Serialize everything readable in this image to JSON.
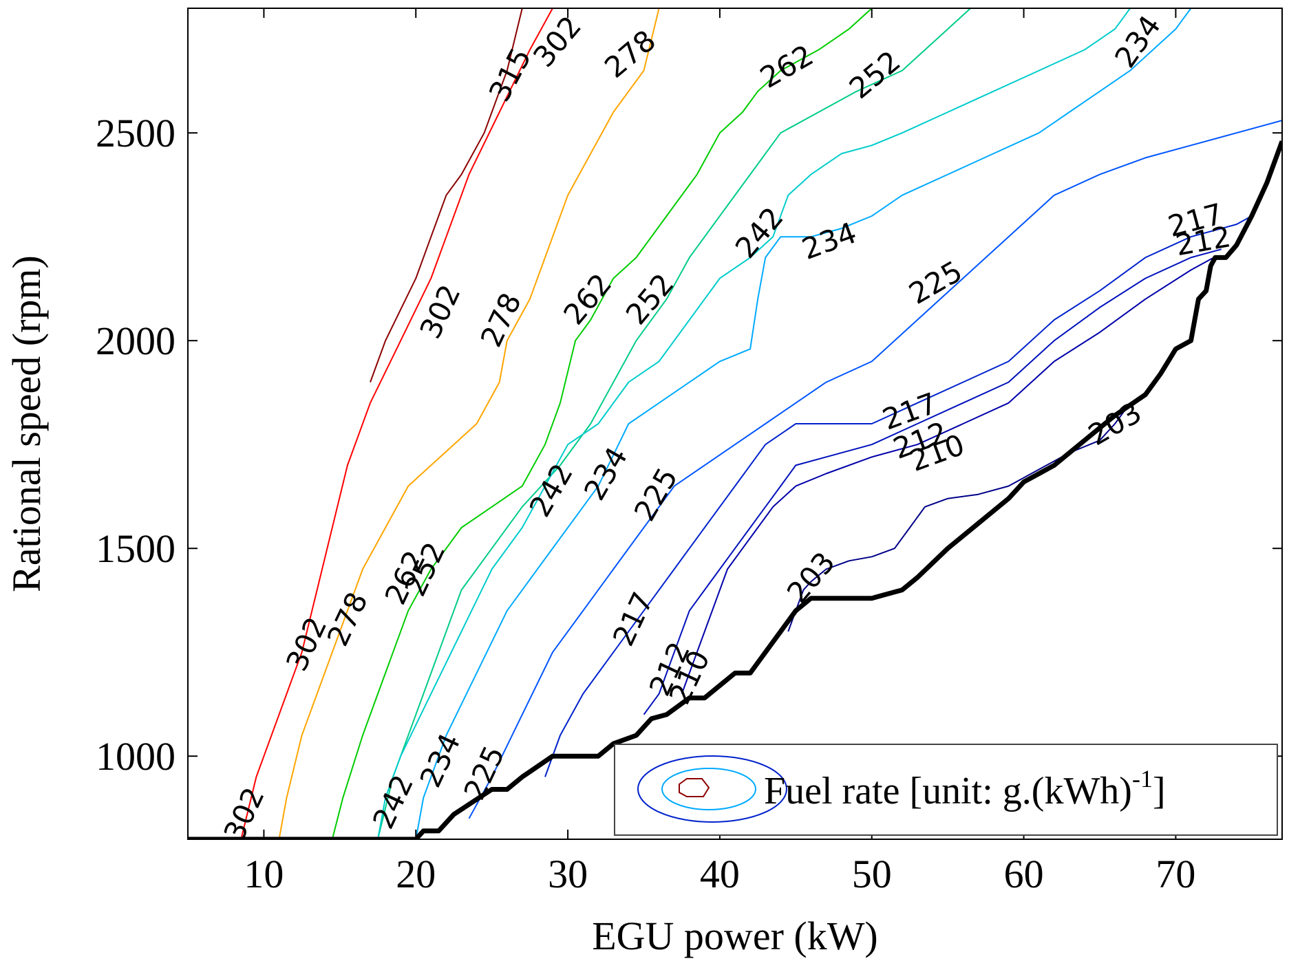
{
  "chart_data": {
    "type": "contour",
    "xlabel": "EGU power (kW)",
    "ylabel": "Rational speed (rpm)",
    "xlim": [
      5,
      77
    ],
    "ylim": [
      800,
      2800
    ],
    "xticks": [
      10,
      20,
      30,
      40,
      50,
      60,
      70
    ],
    "yticks": [
      1000,
      1500,
      2000,
      2500
    ],
    "legend": {
      "position": "bottom-right",
      "text": "Fuel rate [unit: g.(kWh)",
      "superscript": "-1",
      "close": "]"
    },
    "boundary": {
      "name": "",
      "color": "#000000",
      "x": [
        5,
        20,
        20.5,
        21.5,
        22.5,
        25,
        26,
        27,
        29,
        30,
        32,
        33,
        34.5,
        35.5,
        36.5,
        38,
        39,
        40,
        41,
        42,
        43,
        44,
        45,
        46,
        47,
        50,
        51,
        52,
        53,
        55,
        57,
        59,
        60,
        61,
        62,
        64,
        66,
        68,
        69,
        69.5,
        70,
        71,
        71.5,
        72,
        72.3,
        72.6,
        73,
        73.3,
        74,
        75,
        76,
        77
      ],
      "y": [
        800,
        800,
        820,
        820,
        860,
        920,
        920,
        950,
        1000,
        1000,
        1000,
        1030,
        1050,
        1090,
        1100,
        1140,
        1140,
        1170,
        1200,
        1200,
        1250,
        1300,
        1350,
        1380,
        1380,
        1380,
        1390,
        1400,
        1430,
        1500,
        1560,
        1620,
        1660,
        1680,
        1700,
        1760,
        1820,
        1870,
        1920,
        1950,
        1980,
        2000,
        2100,
        2120,
        2180,
        2200,
        2200,
        2200,
        2230,
        2300,
        2380,
        2480
      ]
    },
    "contours": [
      {
        "level": "315",
        "color": "#8b0000",
        "x": [
          17,
          18,
          20,
          21,
          22,
          23,
          24.5,
          26,
          27
        ],
        "y": [
          1900,
          2000,
          2150,
          2250,
          2350,
          2400,
          2500,
          2650,
          2800
        ],
        "labels": [
          {
            "text": "315",
            "x": 26.2,
            "y": 2640,
            "angle": -62
          }
        ]
      },
      {
        "level": "302",
        "color": "#ff0000",
        "x": [
          8.5,
          9.5,
          11,
          12.5,
          13.5,
          14.5,
          15.5,
          17,
          19,
          21,
          22,
          23.5,
          25.5,
          27.5,
          29
        ],
        "y": [
          800,
          950,
          1100,
          1250,
          1400,
          1550,
          1700,
          1850,
          2000,
          2150,
          2250,
          2400,
          2550,
          2700,
          2800
        ],
        "labels": [
          {
            "text": "302",
            "x": 8.7,
            "y": 860,
            "angle": -65
          },
          {
            "text": "302",
            "x": 12.8,
            "y": 1270,
            "angle": -65
          },
          {
            "text": "302",
            "x": 21.6,
            "y": 2070,
            "angle": -65
          },
          {
            "text": "302",
            "x": 29.3,
            "y": 2720,
            "angle": -50
          }
        ]
      },
      {
        "level": "278",
        "color": "#ffa500",
        "x": [
          11,
          11.5,
          12.5,
          13.5,
          14.5,
          15.5,
          16.5,
          18,
          19.5,
          21,
          22.5,
          24,
          25.5,
          26,
          27.5,
          28.5,
          30,
          31.5,
          33,
          35,
          36
        ],
        "y": [
          800,
          900,
          1050,
          1150,
          1250,
          1350,
          1450,
          1550,
          1650,
          1700,
          1750,
          1800,
          1900,
          2000,
          2100,
          2200,
          2350,
          2450,
          2550,
          2650,
          2800
        ],
        "labels": [
          {
            "text": "278",
            "x": 15.5,
            "y": 1330,
            "angle": -65
          },
          {
            "text": "278",
            "x": 25.6,
            "y": 2050,
            "angle": -65
          },
          {
            "text": "278",
            "x": 34.1,
            "y": 2690,
            "angle": -40
          }
        ]
      },
      {
        "level": "262",
        "color": "#00cc00",
        "x": [
          14.5,
          15.2,
          16.5,
          17.5,
          18.5,
          19.5,
          21,
          23,
          25,
          27,
          28.5,
          29.5,
          30.5,
          31.5,
          33,
          34.5,
          36.5,
          38.5,
          40,
          41.5,
          42.5,
          44,
          46.5,
          48.5,
          50,
          51
        ],
        "y": [
          800,
          900,
          1050,
          1150,
          1250,
          1350,
          1450,
          1550,
          1600,
          1650,
          1750,
          1850,
          2000,
          2050,
          2150,
          2200,
          2300,
          2400,
          2500,
          2550,
          2600,
          2650,
          2700,
          2750,
          2800,
          2800
        ],
        "labels": [
          {
            "text": "262",
            "x": 19.3,
            "y": 1430,
            "angle": -65
          },
          {
            "text": "262",
            "x": 31.3,
            "y": 2100,
            "angle": -50
          },
          {
            "text": "262",
            "x": 44.4,
            "y": 2660,
            "angle": -30
          }
        ]
      },
      {
        "level": "252",
        "color": "#00cc88",
        "x": [
          17.5,
          18.5,
          20,
          21.5,
          23,
          25,
          27,
          29.5,
          31.5,
          33,
          34.5,
          36.5,
          38,
          40,
          42,
          44,
          46.5,
          49,
          52,
          55,
          56.5
        ],
        "y": [
          800,
          950,
          1100,
          1250,
          1400,
          1500,
          1600,
          1700,
          1800,
          1900,
          2000,
          2100,
          2200,
          2300,
          2400,
          2500,
          2550,
          2600,
          2650,
          2750,
          2800
        ],
        "labels": [
          {
            "text": "252",
            "x": 20.6,
            "y": 1450,
            "angle": -65
          },
          {
            "text": "252",
            "x": 35.4,
            "y": 2100,
            "angle": -50
          },
          {
            "text": "252",
            "x": 50.2,
            "y": 2640,
            "angle": -40
          }
        ]
      },
      {
        "level": "242",
        "color": "#00cccc",
        "x": [
          17.5,
          18,
          19,
          21,
          23,
          25,
          27,
          28.5,
          30,
          32,
          34,
          36,
          38,
          40,
          42,
          43.5,
          44.5,
          46,
          48,
          50,
          52,
          55,
          58,
          61,
          64,
          66,
          67
        ],
        "y": [
          800,
          900,
          1000,
          1150,
          1300,
          1450,
          1550,
          1650,
          1750,
          1800,
          1900,
          1950,
          2050,
          2150,
          2200,
          2250,
          2350,
          2400,
          2450,
          2470,
          2500,
          2550,
          2600,
          2650,
          2700,
          2750,
          2800
        ],
        "labels": [
          {
            "text": "242",
            "x": 18.5,
            "y": 890,
            "angle": -65
          },
          {
            "text": "242",
            "x": 28.9,
            "y": 1640,
            "angle": -60
          },
          {
            "text": "242",
            "x": 42.6,
            "y": 2260,
            "angle": -50
          }
        ]
      },
      {
        "level": "234",
        "color": "#00aaff",
        "x": [
          20,
          20.5,
          22,
          24,
          26,
          28,
          30,
          32,
          34,
          36,
          38,
          40,
          42,
          42.5,
          43,
          44,
          46,
          48,
          50,
          52,
          55,
          58,
          61,
          63,
          65,
          67,
          68.5,
          70,
          71,
          72
        ],
        "y": [
          800,
          900,
          1050,
          1200,
          1350,
          1450,
          1550,
          1650,
          1800,
          1850,
          1900,
          1950,
          1980,
          2100,
          2200,
          2250,
          2250,
          2270,
          2300,
          2350,
          2400,
          2450,
          2500,
          2550,
          2600,
          2650,
          2700,
          2750,
          2800,
          2800
        ],
        "labels": [
          {
            "text": "234",
            "x": 21.6,
            "y": 990,
            "angle": -65
          },
          {
            "text": "234",
            "x": 32.5,
            "y": 1680,
            "angle": -60
          },
          {
            "text": "234",
            "x": 47.2,
            "y": 2240,
            "angle": -20
          },
          {
            "text": "234",
            "x": 67.5,
            "y": 2720,
            "angle": -55
          }
        ]
      },
      {
        "level": "225",
        "color": "#0055ff",
        "x": [
          23.5,
          25,
          27,
          29,
          31,
          33,
          35,
          37,
          39,
          41,
          43,
          45,
          47,
          50,
          53,
          56,
          59,
          62,
          65,
          68,
          71,
          74,
          77
        ],
        "y": [
          850,
          950,
          1100,
          1250,
          1350,
          1450,
          1550,
          1650,
          1700,
          1750,
          1800,
          1850,
          1900,
          1950,
          2050,
          2150,
          2250,
          2350,
          2400,
          2440,
          2470,
          2500,
          2530
        ],
        "labels": [
          {
            "text": "225",
            "x": 24.5,
            "y": 960,
            "angle": -65
          },
          {
            "text": "225",
            "x": 35.8,
            "y": 1630,
            "angle": -60
          },
          {
            "text": "225",
            "x": 54.2,
            "y": 2140,
            "angle": -30
          }
        ]
      },
      {
        "level": "217",
        "color": "#0022cc",
        "x": [
          28.5,
          29.5,
          31,
          33,
          35,
          37,
          39,
          41,
          43,
          45,
          47,
          50,
          53,
          56,
          59,
          62,
          65,
          68,
          71,
          74,
          75
        ],
        "y": [
          950,
          1050,
          1150,
          1250,
          1350,
          1450,
          1550,
          1650,
          1750,
          1800,
          1800,
          1800,
          1850,
          1900,
          1950,
          2050,
          2120,
          2200,
          2250,
          2280,
          2300
        ],
        "labels": [
          {
            "text": "217",
            "x": 34.3,
            "y": 1330,
            "angle": -65
          },
          {
            "text": "217",
            "x": 52.5,
            "y": 1830,
            "angle": -20
          },
          {
            "text": "217",
            "x": 71.3,
            "y": 2290,
            "angle": -15
          }
        ]
      },
      {
        "level": "212",
        "color": "#0011bb",
        "x": [
          35,
          36,
          37,
          38,
          39,
          40,
          41,
          42,
          43,
          44,
          45,
          47,
          50,
          53,
          56,
          59,
          62,
          65,
          68,
          71,
          73
        ],
        "y": [
          1100,
          1150,
          1250,
          1350,
          1400,
          1450,
          1500,
          1550,
          1600,
          1650,
          1700,
          1720,
          1750,
          1800,
          1850,
          1900,
          2000,
          2080,
          2150,
          2200,
          2220
        ],
        "labels": [
          {
            "text": "212",
            "x": 36.7,
            "y": 1210,
            "angle": -65
          },
          {
            "text": "212",
            "x": 53.2,
            "y": 1760,
            "angle": -20
          },
          {
            "text": "212",
            "x": 71.8,
            "y": 2240,
            "angle": -10
          }
        ]
      },
      {
        "level": "210",
        "color": "#0000aa",
        "x": [
          37.5,
          38.5,
          39.5,
          40.5,
          41.5,
          42.5,
          43.5,
          45,
          47,
          50,
          53,
          56,
          59,
          62,
          65,
          68,
          71,
          72.5
        ],
        "y": [
          1150,
          1250,
          1350,
          1450,
          1500,
          1550,
          1600,
          1650,
          1680,
          1720,
          1750,
          1800,
          1850,
          1950,
          2020,
          2100,
          2170,
          2200
        ],
        "labels": [
          {
            "text": "210",
            "x": 38.0,
            "y": 1190,
            "angle": -65
          },
          {
            "text": "210",
            "x": 54.3,
            "y": 1730,
            "angle": -20
          }
        ]
      },
      {
        "level": "203",
        "color": "#000088",
        "x": [
          44.5,
          45,
          45.5,
          46,
          47,
          48.5,
          50,
          51.5,
          52.5,
          53.5,
          55,
          57,
          59,
          61,
          63,
          65,
          66,
          67
        ],
        "y": [
          1300,
          1350,
          1400,
          1420,
          1450,
          1470,
          1480,
          1500,
          1550,
          1600,
          1620,
          1630,
          1650,
          1690,
          1730,
          1760,
          1800,
          1850
        ],
        "labels": [
          {
            "text": "203",
            "x": 46.0,
            "y": 1430,
            "angle": -50
          },
          {
            "text": "203",
            "x": 66.0,
            "y": 1800,
            "angle": -30
          }
        ]
      }
    ]
  }
}
